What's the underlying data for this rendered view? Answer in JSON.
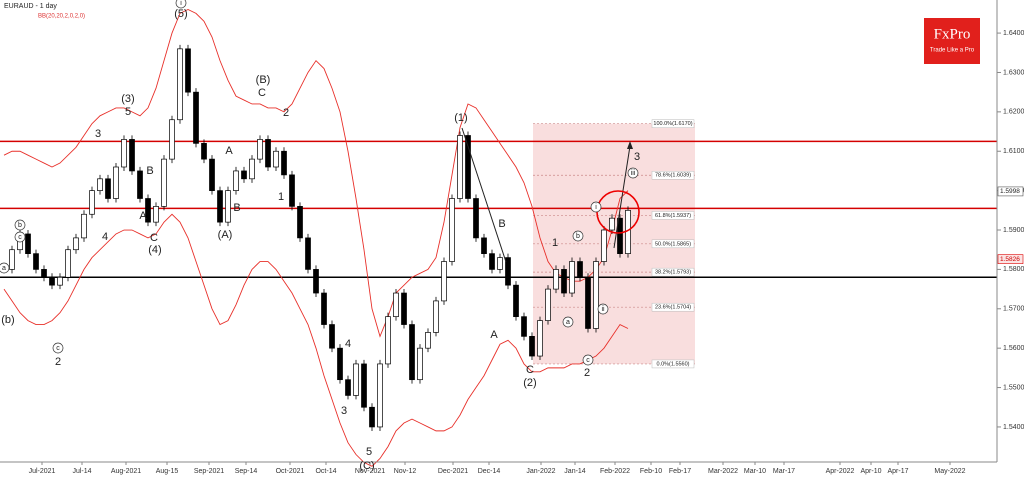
{
  "chart_data": {
    "type": "candlestick",
    "title": "EURAUD - 1 day",
    "subtitle": "BB(20,20,2,0,2,0)",
    "logo": "FxPro",
    "tagline": "Trade Like a Pro",
    "ylim": [
      1.5311,
      1.6484
    ],
    "yticks": [
      {
        "value": 1.54,
        "label": "1.5400"
      },
      {
        "value": 1.55,
        "label": "1.5500"
      },
      {
        "value": 1.56,
        "label": "1.5600"
      },
      {
        "value": 1.57,
        "label": "1.5700"
      },
      {
        "value": 1.58,
        "label": "1.5800"
      },
      {
        "value": 1.59,
        "label": "1.5900"
      },
      {
        "value": 1.6,
        "label": "1.6000"
      },
      {
        "value": 1.61,
        "label": "1.6100"
      },
      {
        "value": 1.62,
        "label": "1.6200"
      },
      {
        "value": 1.63,
        "label": "1.6300"
      },
      {
        "value": 1.64,
        "label": "1.6400"
      }
    ],
    "xtick_labels": [
      "Jul-2021",
      "Jul-14",
      "Aug-2021",
      "Aug-15",
      "Sep-2021",
      "Sep-14",
      "Oct-2021",
      "Oct-14",
      "Nov-2021",
      "Nov-12",
      "Dec-2021",
      "Dec-14",
      "Jan-2022",
      "Jan-14",
      "Feb-2022",
      "Feb-10",
      "Feb-17",
      "Mar-2022",
      "Mar-10",
      "Mar-17",
      "Apr-2022",
      "Apr-10",
      "Apr-17",
      "May-2022"
    ],
    "closes": [
      1.58,
      1.585,
      1.589,
      1.584,
      1.58,
      1.578,
      1.576,
      1.578,
      1.585,
      1.588,
      1.594,
      1.6,
      1.603,
      1.598,
      1.606,
      1.613,
      1.605,
      1.598,
      1.592,
      1.596,
      1.608,
      1.618,
      1.636,
      1.625,
      1.612,
      1.608,
      1.6,
      1.592,
      1.6,
      1.605,
      1.603,
      1.608,
      1.613,
      1.606,
      1.61,
      1.604,
      1.596,
      1.588,
      1.58,
      1.574,
      1.566,
      1.56,
      1.552,
      1.548,
      1.556,
      1.545,
      1.54,
      1.556,
      1.568,
      1.574,
      1.566,
      1.552,
      1.56,
      1.564,
      1.572,
      1.582,
      1.598,
      1.614,
      1.598,
      1.588,
      1.584,
      1.58,
      1.583,
      1.576,
      1.568,
      1.563,
      1.558,
      1.567,
      1.575,
      1.58,
      1.574,
      1.582,
      1.578,
      1.565,
      1.582,
      1.59,
      1.593,
      1.584,
      1.595
    ],
    "band_color": "#e8302a",
    "band_upper": [
      1.609,
      1.61,
      1.61,
      1.609,
      1.608,
      1.607,
      1.606,
      1.607,
      1.609,
      1.611,
      1.614,
      1.617,
      1.619,
      1.62,
      1.621,
      1.621,
      1.62,
      1.619,
      1.621,
      1.626,
      1.633,
      1.64,
      1.645,
      1.646,
      1.645,
      1.643,
      1.639,
      1.633,
      1.628,
      1.624,
      1.623,
      1.622,
      1.622,
      1.621,
      1.621,
      1.62,
      1.622,
      1.626,
      1.63,
      1.633,
      1.631,
      1.626,
      1.62,
      1.61,
      1.598,
      1.585,
      1.57,
      1.563,
      1.568,
      1.574,
      1.576,
      1.578,
      1.579,
      1.58,
      1.583,
      1.592,
      1.604,
      1.616,
      1.622,
      1.621,
      1.618,
      1.615,
      1.612,
      1.609,
      1.606,
      1.602,
      1.596,
      1.588,
      1.582,
      1.579,
      1.578,
      1.577,
      1.577,
      1.578,
      1.58,
      1.583,
      1.59,
      1.598,
      1.6
    ],
    "band_lower": [
      1.575,
      1.572,
      1.569,
      1.567,
      1.566,
      1.566,
      1.567,
      1.569,
      1.572,
      1.576,
      1.58,
      1.583,
      1.585,
      1.587,
      1.589,
      1.59,
      1.59,
      1.589,
      1.588,
      1.589,
      1.592,
      1.594,
      1.592,
      1.588,
      1.582,
      1.576,
      1.57,
      1.566,
      1.567,
      1.571,
      1.576,
      1.58,
      1.582,
      1.582,
      1.58,
      1.577,
      1.574,
      1.57,
      1.566,
      1.56,
      1.553,
      1.547,
      1.541,
      1.536,
      1.533,
      1.531,
      1.53,
      1.532,
      1.535,
      1.539,
      1.541,
      1.542,
      1.541,
      1.54,
      1.539,
      1.539,
      1.54,
      1.543,
      1.547,
      1.55,
      1.553,
      1.557,
      1.561,
      1.562,
      1.56,
      1.556,
      1.554,
      1.554,
      1.555,
      1.555,
      1.555,
      1.556,
      1.556,
      1.557,
      1.558,
      1.56,
      1.563,
      1.566,
      1.565
    ],
    "levels": [
      {
        "value": 1.6125,
        "color": "#d40000"
      },
      {
        "value": 1.5955,
        "color": "#d40000"
      },
      {
        "value": 1.578,
        "color": "#000000"
      }
    ],
    "fib_levels": [
      {
        "value": 1.617,
        "label": "100.0%(1.6170)"
      },
      {
        "value": 1.6039,
        "label": "78.6%(1.6039)"
      },
      {
        "value": 1.5937,
        "label": "61.8%(1.5937)"
      },
      {
        "value": 1.5865,
        "label": "50.0%(1.5865)"
      },
      {
        "value": 1.5793,
        "label": "38.2%(1.5793)"
      },
      {
        "value": 1.5704,
        "label": "23.6%(1.5704)"
      },
      {
        "value": 1.556,
        "label": "0.0%(1.5560)"
      }
    ],
    "price_labels": [
      {
        "value": 1.5998,
        "label": "1.5998"
      },
      {
        "value": 1.5826,
        "label": "1.5826"
      }
    ],
    "waves": [
      {
        "text": "(5)"
      },
      {
        "text": "(3)"
      },
      {
        "text": "5"
      },
      {
        "text": "3"
      },
      {
        "text": "(B)"
      },
      {
        "text": "C"
      },
      {
        "text": "2"
      },
      {
        "text": "A"
      },
      {
        "text": "B"
      },
      {
        "text": "A"
      },
      {
        "text": "C"
      },
      {
        "text": "(4)"
      },
      {
        "text": "4"
      },
      {
        "text": "B"
      },
      {
        "text": "(A)"
      },
      {
        "text": "1"
      },
      {
        "text": "2"
      },
      {
        "text": "(1)"
      },
      {
        "text": "B"
      },
      {
        "text": "A"
      },
      {
        "text": "1"
      },
      {
        "text": "C"
      },
      {
        "text": "(2)"
      },
      {
        "text": "2"
      },
      {
        "text": "3"
      },
      {
        "text": "4"
      },
      {
        "text": "3"
      },
      {
        "text": "5"
      },
      {
        "text": "(C)"
      },
      {
        "text": "b",
        "circled": true
      },
      {
        "text": "c",
        "circled": true
      },
      {
        "text": "a",
        "circled": true
      },
      {
        "text": "c",
        "circled": true
      },
      {
        "text": "b",
        "circled": true
      },
      {
        "text": "a",
        "circled": true
      },
      {
        "text": "c",
        "circled": true
      },
      {
        "text": "i",
        "circled": true
      },
      {
        "text": "ii",
        "circled": true
      },
      {
        "text": "iii",
        "circled": true
      },
      {
        "text": "i",
        "circled": true
      },
      {
        "text": "(b)"
      }
    ]
  }
}
